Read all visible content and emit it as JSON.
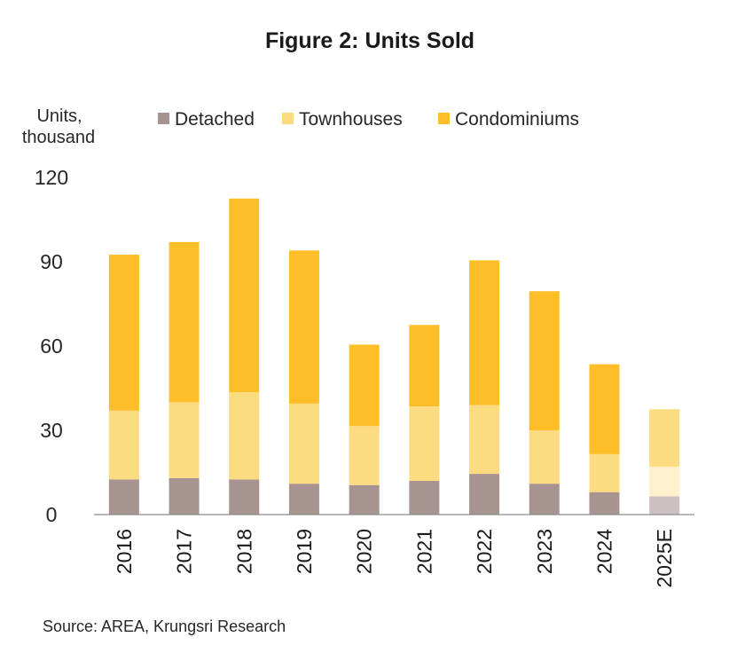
{
  "chart_data": {
    "type": "bar",
    "stacked": true,
    "title": "Figure 2: Units Sold",
    "ylabel": [
      "Units,",
      "thousand"
    ],
    "xlabel": "",
    "ylim": [
      0,
      120
    ],
    "yticks": [
      0,
      30,
      60,
      90,
      120
    ],
    "categories": [
      "2016",
      "2017",
      "2018",
      "2019",
      "2020",
      "2021",
      "2022",
      "2023",
      "2024",
      "2025E"
    ],
    "series": [
      {
        "name": "Detached",
        "color": "#a79490",
        "estimate_color": "#cdc1c3",
        "values": [
          12.5,
          13,
          12.5,
          11,
          10.5,
          12,
          14.5,
          11,
          8,
          6.5
        ]
      },
      {
        "name": "Townhouses",
        "color": "#fcdb81",
        "estimate_color": "#fef0cf",
        "values": [
          24.5,
          27,
          31,
          28.5,
          21,
          26.5,
          24.5,
          19,
          13.5,
          10.5
        ]
      },
      {
        "name": "Condominiums",
        "color": "#fdbe28",
        "estimate_color": "#fcdb81",
        "values": [
          55.5,
          57,
          69,
          54.5,
          29,
          29,
          51.5,
          49.5,
          32,
          20.5
        ]
      }
    ],
    "estimate_categories": [
      "2025E"
    ],
    "legend": "top",
    "grid": false,
    "source": "Source: AREA, Krungsri Research"
  }
}
